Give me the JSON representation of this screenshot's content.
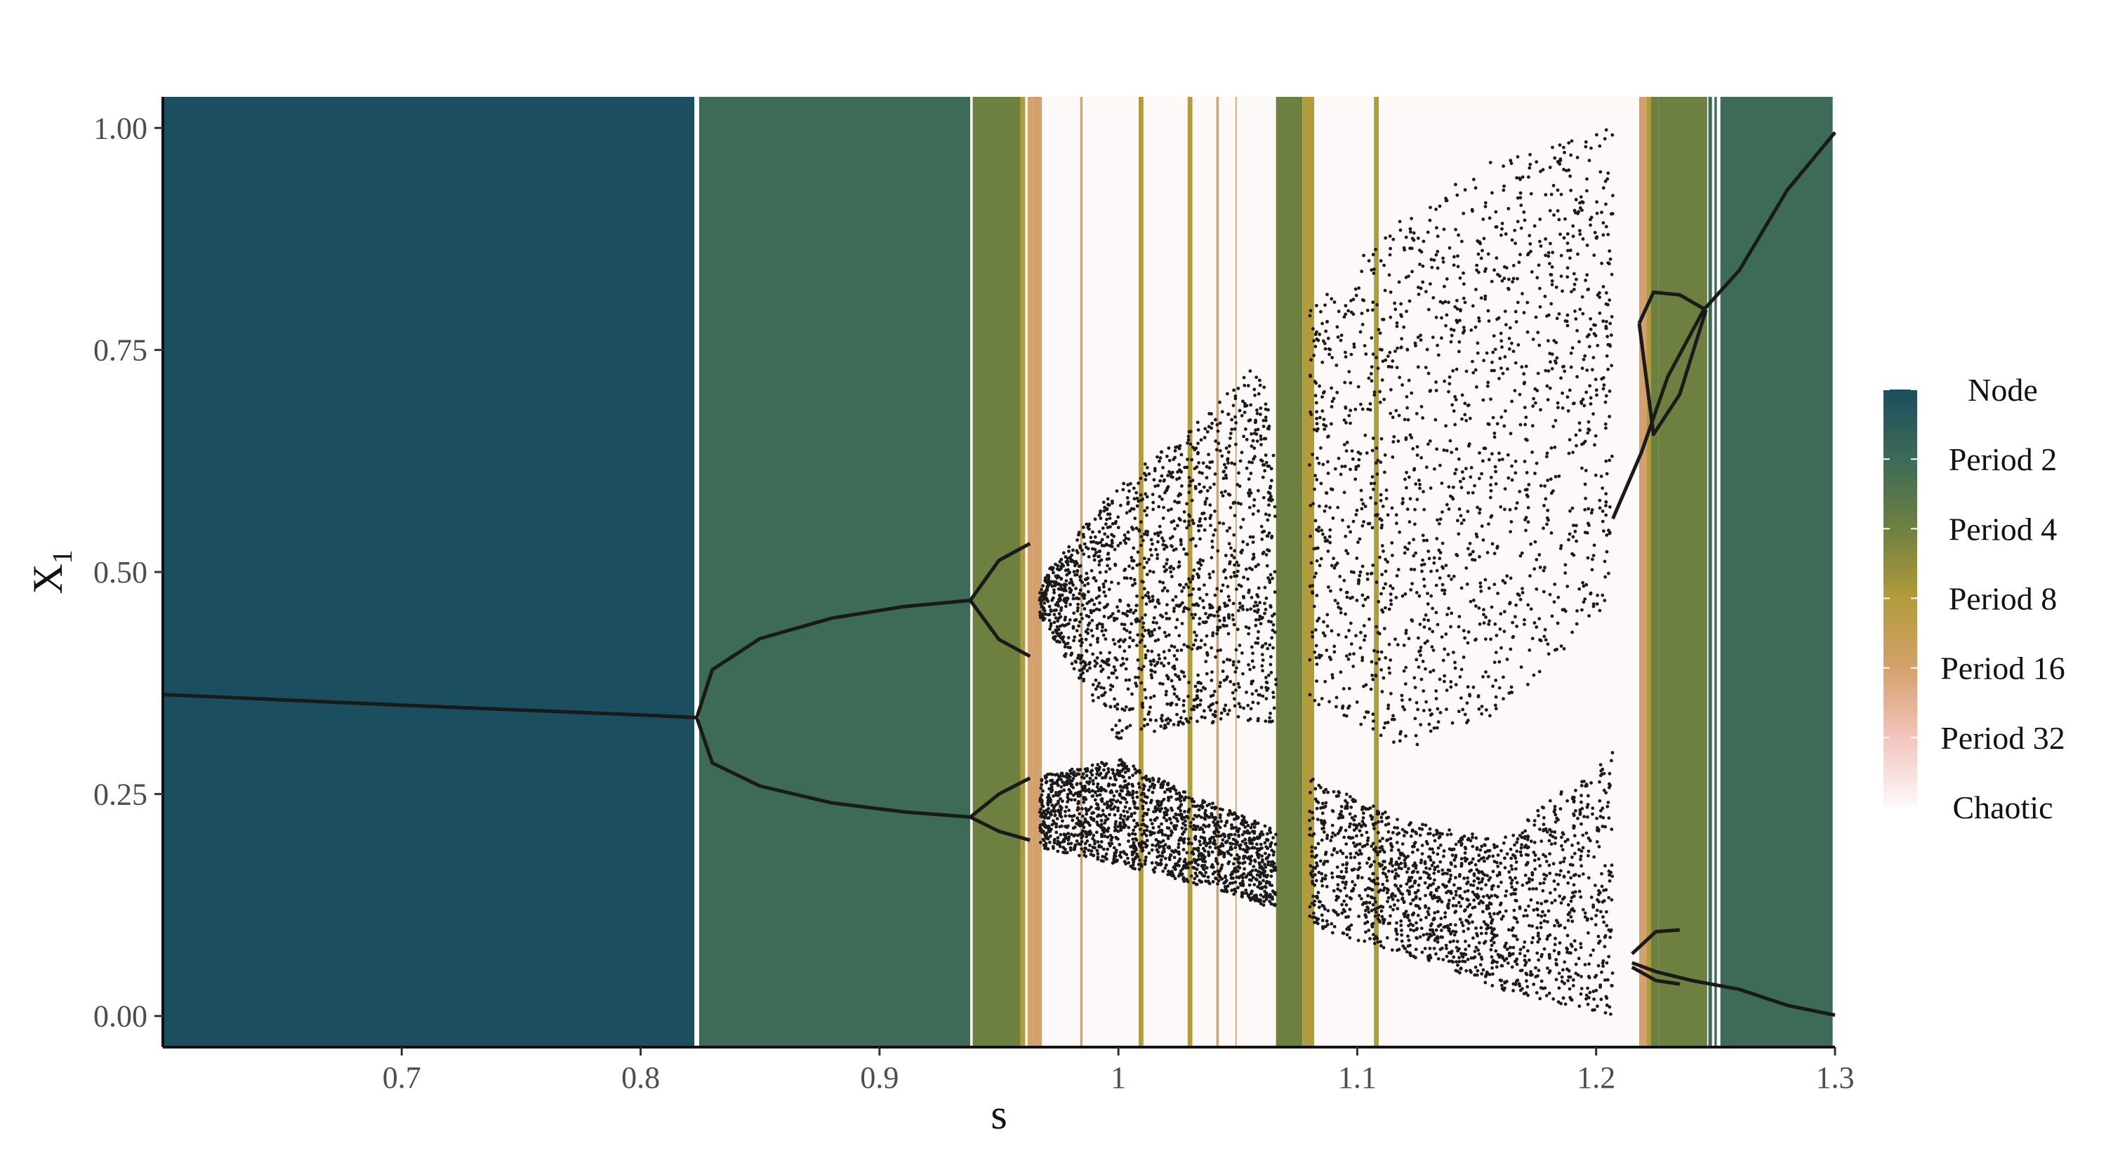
{
  "chart_data": {
    "type": "scatter",
    "subtype": "bifurcation-diagram",
    "title": "",
    "xlabel": "s",
    "ylabel": "X",
    "ylabel_subscript": "1",
    "xlim": [
      0.6,
      1.3
    ],
    "ylim": [
      -0.035,
      1.035
    ],
    "x_ticks": [
      0.7,
      0.8,
      0.9,
      1.0,
      1.1,
      1.2,
      1.3
    ],
    "x_tick_labels": [
      "0.7",
      "0.8",
      "0.9",
      "1",
      "1.1",
      "1.2",
      "1.3"
    ],
    "y_ticks": [
      0.0,
      0.25,
      0.5,
      0.75,
      1.0
    ],
    "y_tick_labels": [
      "0.00",
      "0.25",
      "0.50",
      "0.75",
      "1.00"
    ],
    "grid": false,
    "legend": {
      "position": "right",
      "kind": "color-gradient",
      "entries": [
        {
          "label": "Node",
          "color": "#1b4f5f"
        },
        {
          "label": "Period 2",
          "color": "#3d6b58"
        },
        {
          "label": "Period 4",
          "color": "#6e8040"
        },
        {
          "label": "Period 8",
          "color": "#b39b3c"
        },
        {
          "label": "Period 16",
          "color": "#d4a06b"
        },
        {
          "label": "Period 32",
          "color": "#f4c4bd"
        },
        {
          "label": "Chaotic",
          "color": "#fdf9f9"
        }
      ]
    },
    "regimes": [
      {
        "from": 0.6,
        "to": 0.8225,
        "label": "Node"
      },
      {
        "from": 0.8245,
        "to": 0.938,
        "label": "Period 2"
      },
      {
        "from": 0.939,
        "to": 0.959,
        "label": "Period 4"
      },
      {
        "from": 0.959,
        "to": 0.961,
        "label": "Period 8"
      },
      {
        "from": 0.962,
        "to": 0.964,
        "label": "Period 16"
      },
      {
        "from": 0.964,
        "to": 0.968,
        "label": "Period 16"
      },
      {
        "from": 0.968,
        "to": 1.0085,
        "label": "Chaotic"
      },
      {
        "from": 0.984,
        "to": 0.985,
        "label": "Period 16"
      },
      {
        "from": 1.0085,
        "to": 1.0105,
        "label": "Period 8"
      },
      {
        "from": 1.0105,
        "to": 1.029,
        "label": "Chaotic"
      },
      {
        "from": 1.029,
        "to": 1.031,
        "label": "Period 8"
      },
      {
        "from": 1.031,
        "to": 1.066,
        "label": "Chaotic"
      },
      {
        "from": 1.041,
        "to": 1.042,
        "label": "Period 16"
      },
      {
        "from": 1.049,
        "to": 1.0495,
        "label": "Period 16"
      },
      {
        "from": 1.066,
        "to": 1.077,
        "label": "Period 4"
      },
      {
        "from": 1.077,
        "to": 1.082,
        "label": "Period 8"
      },
      {
        "from": 1.082,
        "to": 1.107,
        "label": "Chaotic"
      },
      {
        "from": 1.107,
        "to": 1.109,
        "label": "Period 8"
      },
      {
        "from": 1.109,
        "to": 1.218,
        "label": "Chaotic"
      },
      {
        "from": 1.218,
        "to": 1.221,
        "label": "Period 16"
      },
      {
        "from": 1.221,
        "to": 1.223,
        "label": "Period 8"
      },
      {
        "from": 1.223,
        "to": 1.226,
        "label": "Period 4"
      },
      {
        "from": 1.226,
        "to": 1.244,
        "label": "Period 4"
      },
      {
        "from": 1.244,
        "to": 1.2465,
        "label": "Period 4"
      },
      {
        "from": 1.247,
        "to": 1.2485,
        "label": "Period 2"
      },
      {
        "from": 1.2495,
        "to": 1.2505,
        "label": "Period 2"
      },
      {
        "from": 1.252,
        "to": 1.299,
        "label": "Period 2"
      }
    ],
    "branches": [
      {
        "name": "fixed-point",
        "points": [
          [
            0.6,
            0.362
          ],
          [
            0.7,
            0.35
          ],
          [
            0.8,
            0.339
          ],
          [
            0.8235,
            0.336
          ]
        ]
      },
      {
        "name": "p2-upper",
        "points": [
          [
            0.8235,
            0.336
          ],
          [
            0.83,
            0.39
          ],
          [
            0.85,
            0.425
          ],
          [
            0.88,
            0.448
          ],
          [
            0.91,
            0.461
          ],
          [
            0.938,
            0.468
          ]
        ]
      },
      {
        "name": "p2-lower",
        "points": [
          [
            0.8235,
            0.336
          ],
          [
            0.83,
            0.285
          ],
          [
            0.85,
            0.259
          ],
          [
            0.88,
            0.24
          ],
          [
            0.91,
            0.23
          ],
          [
            0.938,
            0.224
          ]
        ]
      },
      {
        "name": "p4-a",
        "points": [
          [
            0.938,
            0.468
          ],
          [
            0.95,
            0.513
          ],
          [
            0.963,
            0.532
          ]
        ]
      },
      {
        "name": "p4-b",
        "points": [
          [
            0.938,
            0.468
          ],
          [
            0.95,
            0.424
          ],
          [
            0.963,
            0.405
          ]
        ]
      },
      {
        "name": "p4-c",
        "points": [
          [
            0.938,
            0.224
          ],
          [
            0.95,
            0.25
          ],
          [
            0.963,
            0.268
          ]
        ]
      },
      {
        "name": "p4-d",
        "points": [
          [
            0.938,
            0.224
          ],
          [
            0.95,
            0.208
          ],
          [
            0.963,
            0.198
          ]
        ]
      },
      {
        "name": "post-upper",
        "points": [
          [
            1.207,
            0.56
          ],
          [
            1.219,
            0.635
          ],
          [
            1.23,
            0.72
          ],
          [
            1.245,
            0.795
          ],
          [
            1.26,
            0.84
          ],
          [
            1.28,
            0.93
          ],
          [
            1.3,
            0.995
          ]
        ]
      },
      {
        "name": "post-p2-a",
        "points": [
          [
            1.218,
            0.78
          ],
          [
            1.224,
            0.815
          ],
          [
            1.235,
            0.812
          ],
          [
            1.246,
            0.795
          ]
        ]
      },
      {
        "name": "post-p2-b",
        "points": [
          [
            1.218,
            0.78
          ],
          [
            1.224,
            0.655
          ],
          [
            1.235,
            0.7
          ],
          [
            1.246,
            0.795
          ]
        ]
      },
      {
        "name": "post-lower",
        "points": [
          [
            1.215,
            0.06
          ],
          [
            1.225,
            0.05
          ],
          [
            1.24,
            0.04
          ],
          [
            1.26,
            0.03
          ],
          [
            1.28,
            0.012
          ],
          [
            1.3,
            0.001
          ]
        ]
      },
      {
        "name": "post-p2-c",
        "points": [
          [
            1.215,
            0.07
          ],
          [
            1.225,
            0.095
          ],
          [
            1.235,
            0.097
          ]
        ]
      },
      {
        "name": "post-p2-d",
        "points": [
          [
            1.215,
            0.055
          ],
          [
            1.225,
            0.04
          ],
          [
            1.235,
            0.036
          ]
        ]
      }
    ],
    "chaotic_bands": [
      {
        "name": "band1-upper",
        "from": 0.967,
        "to": 1.066,
        "lower": [
          [
            0.967,
            0.45
          ],
          [
            1.0,
            0.31
          ],
          [
            1.03,
            0.33
          ],
          [
            1.066,
            0.33
          ]
        ],
        "upper": [
          [
            0.967,
            0.49
          ],
          [
            1.0,
            0.6
          ],
          [
            1.03,
            0.66
          ],
          [
            1.06,
            0.74
          ],
          [
            1.066,
            0.62
          ]
        ]
      },
      {
        "name": "band1-lower",
        "from": 0.967,
        "to": 1.066,
        "lower": [
          [
            0.967,
            0.19
          ],
          [
            1.0,
            0.17
          ],
          [
            1.03,
            0.15
          ],
          [
            1.066,
            0.12
          ]
        ],
        "upper": [
          [
            0.967,
            0.27
          ],
          [
            1.0,
            0.29
          ],
          [
            1.03,
            0.25
          ],
          [
            1.066,
            0.21
          ]
        ]
      },
      {
        "name": "band2-upper",
        "from": 1.08,
        "to": 1.207,
        "lower": [
          [
            1.08,
            0.35
          ],
          [
            1.12,
            0.3
          ],
          [
            1.16,
            0.34
          ],
          [
            1.207,
            0.47
          ]
        ],
        "upper": [
          [
            1.08,
            0.8
          ],
          [
            1.12,
            0.9
          ],
          [
            1.16,
            0.97
          ],
          [
            1.207,
            1.0
          ]
        ]
      },
      {
        "name": "band2-lower",
        "from": 1.08,
        "to": 1.207,
        "lower": [
          [
            1.08,
            0.1
          ],
          [
            1.12,
            0.07
          ],
          [
            1.16,
            0.03
          ],
          [
            1.207,
            0.0
          ]
        ],
        "upper": [
          [
            1.08,
            0.27
          ],
          [
            1.12,
            0.22
          ],
          [
            1.16,
            0.2
          ],
          [
            1.207,
            0.3
          ]
        ]
      }
    ]
  }
}
